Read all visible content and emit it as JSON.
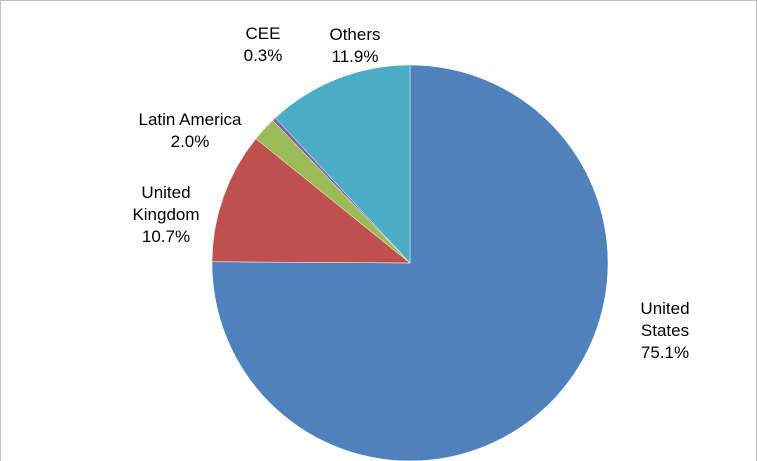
{
  "chart_data": {
    "type": "pie",
    "categories": [
      "United States",
      "United Kingdom",
      "Latin America",
      "CEE",
      "Others"
    ],
    "values": [
      75.1,
      10.7,
      2.0,
      0.3,
      11.9
    ],
    "value_labels": [
      "75.1%",
      "10.7%",
      "2.0%",
      "0.3%",
      "11.9%"
    ],
    "colors": [
      "#4f81bd",
      "#c0504d",
      "#9bbb59",
      "#8064a2",
      "#4bacc6"
    ]
  }
}
